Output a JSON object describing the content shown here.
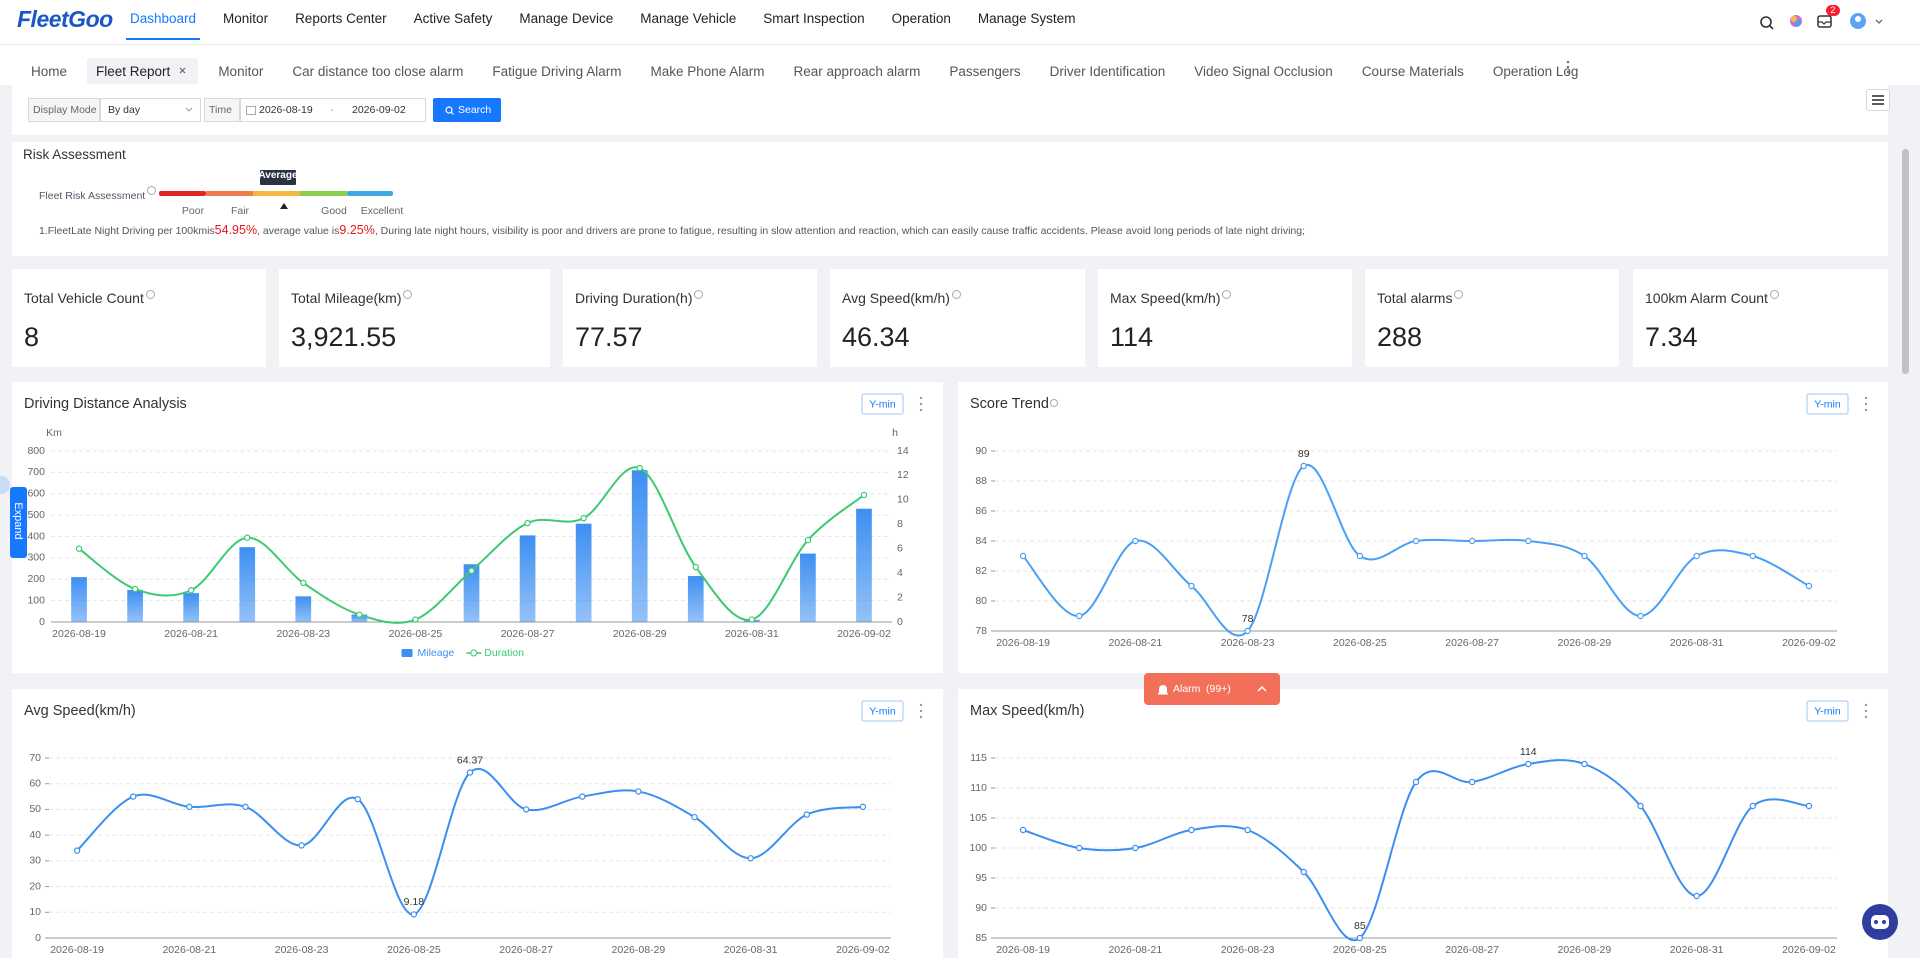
{
  "nav": {
    "logo": "FleetGoo",
    "items": [
      "Dashboard",
      "Monitor",
      "Reports Center",
      "Active Safety",
      "Manage Device",
      "Manage Vehicle",
      "Smart Inspection",
      "Operation",
      "Manage System"
    ],
    "badge": "2"
  },
  "tabs": [
    "Home",
    "Fleet Report",
    "Monitor",
    "Car distance too close alarm",
    "Fatigue Driving Alarm",
    "Make Phone Alarm",
    "Rear approach alarm",
    "Passengers",
    "Driver Identification",
    "Video Signal Occlusion",
    "Course Materials",
    "Operation Log"
  ],
  "filters": {
    "display_mode_label": "Display Mode",
    "display_mode": "By day",
    "time_label": "Time",
    "start": "2026-08-19",
    "separator": "-",
    "end": "2026-09-02",
    "search": "Search"
  },
  "risk": {
    "title": "Risk Assessment",
    "label": "Fleet Risk Assessment",
    "levels": [
      "Poor",
      "Fair",
      "Average",
      "Good",
      "Excellent"
    ],
    "note": {
      "prefix": "1.FleetLate Night Driving per 100kmis",
      "rate": "54.95%",
      "middle": ", average value is",
      "average": "9.25%",
      "suffix": ", During late night hours, visibility is poor and drivers are prone to fatigue, resulting in slow attention and reaction, which can easily cause traffic accidents. Please avoid long periods of late night driving;"
    }
  },
  "stats": [
    {
      "label": "Total Vehicle Count",
      "value": "8"
    },
    {
      "label": "Total Mileage(km)",
      "value": "3,921.55"
    },
    {
      "label": "Driving Duration(h)",
      "value": "77.57"
    },
    {
      "label": "Avg Speed(km/h)",
      "value": "46.34"
    },
    {
      "label": "Max Speed(km/h)",
      "value": "114"
    },
    {
      "label": "Total alarms",
      "value": "288"
    },
    {
      "label": "100km Alarm Count",
      "value": "7.34"
    }
  ],
  "chart_data": [
    {
      "type": "bar",
      "title": "Driving Distance Analysis",
      "button": "Y-min",
      "y_label": "Km",
      "y2_label": "h",
      "categories": [
        "2026-08-19",
        null,
        "2026-08-21",
        null,
        "2026-08-23",
        null,
        "2026-08-25",
        null,
        "2026-08-27",
        null,
        "2026-08-29",
        null,
        "2026-08-31",
        null,
        "2026-09-02"
      ],
      "series": [
        {
          "name": "Mileage",
          "color": "#3d8ff2",
          "values": [
            210,
            150,
            135,
            350,
            120,
            35,
            0,
            270,
            405,
            460,
            710,
            215,
            10,
            320,
            530
          ]
        },
        {
          "name": "Duration",
          "type": "line",
          "axis": "y2",
          "color": "#3cc971",
          "values": [
            6.0,
            2.7,
            2.6,
            6.9,
            3.2,
            0.6,
            0.2,
            4.2,
            8.1,
            8.5,
            12.6,
            4.5,
            0.2,
            6.7,
            10.4
          ]
        }
      ],
      "ylim": [
        0,
        800
      ],
      "yticks": [
        0,
        100,
        200,
        300,
        400,
        500,
        600,
        700,
        800
      ],
      "y2lim": [
        0,
        14
      ],
      "y2ticks": [
        0,
        2,
        4,
        6,
        8,
        10,
        12,
        14
      ],
      "grid": true,
      "smooth": true,
      "legend": "bottom"
    },
    {
      "type": "line",
      "title": "Score Trend",
      "info_icon": true,
      "button": "Y-min",
      "categories": [
        "2026-08-19",
        null,
        "2026-08-21",
        null,
        "2026-08-23",
        null,
        "2026-08-25",
        null,
        "2026-08-27",
        null,
        "2026-08-29",
        null,
        "2026-08-31",
        null,
        "2026-09-02"
      ],
      "series": [
        {
          "color": "#4a9ff5",
          "values": [
            83,
            79,
            84,
            81,
            78,
            89,
            83,
            84,
            84,
            84,
            83,
            79,
            83,
            83,
            81
          ]
        }
      ],
      "ylim": [
        78,
        90
      ],
      "yticks": [
        78,
        80,
        82,
        84,
        86,
        88,
        90
      ],
      "grid": true,
      "smooth": true,
      "mark_extremes": true
    },
    {
      "type": "line",
      "title": "Avg Speed(km/h)",
      "button": "Y-min",
      "categories": [
        "2026-08-19",
        null,
        "2026-08-21",
        null,
        "2026-08-23",
        null,
        "2026-08-25",
        null,
        "2026-08-27",
        null,
        "2026-08-29",
        null,
        "2026-08-31",
        null,
        "2026-09-02"
      ],
      "series": [
        {
          "color": "#3b8ff0",
          "values": [
            34,
            55,
            51,
            51,
            36,
            54,
            9.18,
            64.37,
            50,
            55,
            57,
            47,
            31,
            48,
            51
          ]
        }
      ],
      "ylim": [
        0,
        70
      ],
      "yticks": [
        0,
        10,
        20,
        30,
        40,
        50,
        60,
        70
      ],
      "grid": true,
      "smooth": true,
      "mark_extremes": true
    },
    {
      "type": "line",
      "title": "Max Speed(km/h)",
      "button": "Y-min",
      "categories": [
        "2026-08-19",
        null,
        "2026-08-21",
        null,
        "2026-08-23",
        null,
        "2026-08-25",
        null,
        "2026-08-27",
        null,
        "2026-08-29",
        null,
        "2026-08-31",
        null,
        "2026-09-02"
      ],
      "series": [
        {
          "color": "#3b8ff0",
          "values": [
            103,
            100,
            100,
            103,
            103,
            96,
            85,
            111,
            111,
            114,
            114,
            107,
            92,
            107,
            107
          ]
        }
      ],
      "ylim": [
        85,
        115
      ],
      "yticks": [
        85,
        90,
        95,
        100,
        105,
        110,
        115
      ],
      "grid": true,
      "smooth": true,
      "mark_extremes": true
    }
  ],
  "expand": "Expand",
  "alarm": {
    "label": "Alarm",
    "count": "(99+)"
  }
}
